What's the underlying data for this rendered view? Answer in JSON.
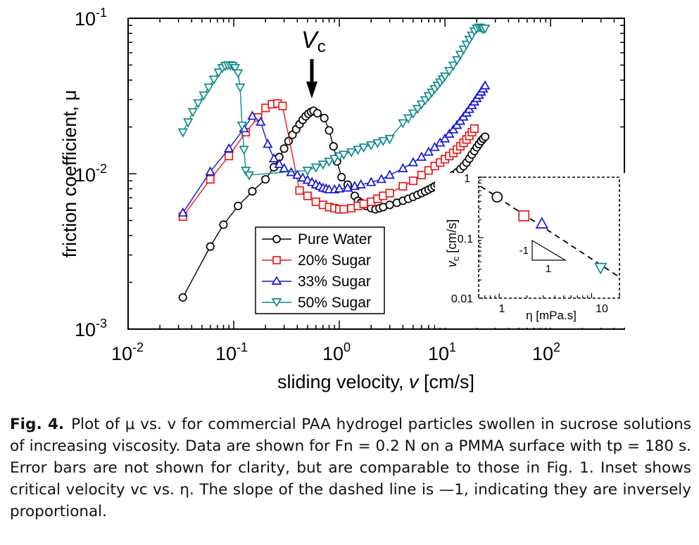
{
  "chart_data": [
    {
      "type": "line",
      "scale": {
        "x": "log",
        "y": "log"
      },
      "xlabel_parts": {
        "text": "sliding velocity, ",
        "var": "v",
        "unit": "  [cm/s]"
      },
      "ylabel": "friction coefficient, μ",
      "xlim": [
        0.01,
        500
      ],
      "ylim": [
        0.001,
        0.1
      ],
      "x_ticks": [
        {
          "base": "10",
          "exp": "-2",
          "value": 0.01
        },
        {
          "base": "10",
          "exp": "-1",
          "value": 0.1
        },
        {
          "base": "10",
          "exp": "0",
          "value": 1
        },
        {
          "base": "10",
          "exp": "1",
          "value": 10
        },
        {
          "base": "10",
          "exp": "2",
          "value": 100
        }
      ],
      "y_ticks": [
        {
          "base": "10",
          "exp": "-3",
          "value": 0.001
        },
        {
          "base": "10",
          "exp": "-2",
          "value": 0.01
        },
        {
          "base": "10",
          "exp": "-1",
          "value": 0.1
        }
      ],
      "annotation": {
        "text": "V",
        "sub": "c",
        "x": 0.55
      },
      "legend_position": "lower-center",
      "series": [
        {
          "name": "Pure Water",
          "color": "#000000",
          "marker": "circle",
          "points": [
            [
              0.033,
              0.0016
            ],
            [
              0.06,
              0.0034
            ],
            [
              0.08,
              0.0047
            ],
            [
              0.11,
              0.0062
            ],
            [
              0.15,
              0.0077
            ],
            [
              0.2,
              0.0092
            ],
            [
              0.24,
              0.011
            ],
            [
              0.27,
              0.0128
            ],
            [
              0.3,
              0.0145
            ],
            [
              0.33,
              0.0162
            ],
            [
              0.36,
              0.0178
            ],
            [
              0.39,
              0.0193
            ],
            [
              0.42,
              0.0208
            ],
            [
              0.45,
              0.0222
            ],
            [
              0.48,
              0.0234
            ],
            [
              0.51,
              0.0243
            ],
            [
              0.54,
              0.025
            ],
            [
              0.57,
              0.0254
            ],
            [
              0.62,
              0.0245
            ],
            [
              0.72,
              0.0228
            ],
            [
              0.8,
              0.019
            ],
            [
              0.88,
              0.015
            ],
            [
              0.95,
              0.012
            ],
            [
              1.05,
              0.0095
            ],
            [
              1.2,
              0.0085
            ],
            [
              1.4,
              0.0072
            ],
            [
              1.5,
              0.0067
            ],
            [
              1.6,
              0.0065
            ],
            [
              1.8,
              0.0062
            ],
            [
              2.0,
              0.006
            ],
            [
              2.2,
              0.0059
            ],
            [
              2.4,
              0.006
            ],
            [
              2.6,
              0.0061
            ],
            [
              3.0,
              0.0063
            ],
            [
              3.5,
              0.0065
            ],
            [
              4.0,
              0.0067
            ],
            [
              4.5,
              0.0069
            ],
            [
              5.0,
              0.0071
            ],
            [
              5.5,
              0.0073
            ],
            [
              6.0,
              0.0075
            ],
            [
              6.5,
              0.0077
            ],
            [
              7.0,
              0.0079
            ],
            [
              7.5,
              0.0081
            ],
            [
              8.0,
              0.0083
            ],
            [
              8.5,
              0.0085
            ],
            [
              9.0,
              0.0087
            ],
            [
              9.5,
              0.0089
            ],
            [
              10,
              0.0091
            ],
            [
              11,
              0.0094
            ],
            [
              12,
              0.0098
            ],
            [
              13,
              0.0102
            ],
            [
              14,
              0.0107
            ],
            [
              15,
              0.0112
            ],
            [
              16,
              0.0118
            ],
            [
              17,
              0.0125
            ],
            [
              18,
              0.0133
            ],
            [
              19,
              0.014
            ],
            [
              20,
              0.0148
            ],
            [
              21,
              0.0155
            ],
            [
              22,
              0.0162
            ],
            [
              23,
              0.0168
            ],
            [
              24,
              0.0173
            ]
          ]
        },
        {
          "name": "20% Sugar",
          "color": "#e8191b",
          "marker": "square",
          "points": [
            [
              0.033,
              0.0053
            ],
            [
              0.06,
              0.0092
            ],
            [
              0.09,
              0.013
            ],
            [
              0.13,
              0.0185
            ],
            [
              0.17,
              0.023
            ],
            [
              0.2,
              0.0265
            ],
            [
              0.23,
              0.028
            ],
            [
              0.26,
              0.0283
            ],
            [
              0.29,
              0.0273
            ],
            [
              0.42,
              0.0078
            ],
            [
              0.5,
              0.0072
            ],
            [
              0.6,
              0.0066
            ],
            [
              0.7,
              0.0063
            ],
            [
              0.8,
              0.0061
            ],
            [
              0.9,
              0.006
            ],
            [
              1.0,
              0.0059
            ],
            [
              1.1,
              0.0059
            ],
            [
              1.3,
              0.006
            ],
            [
              1.5,
              0.0062
            ],
            [
              1.7,
              0.0064
            ],
            [
              2.0,
              0.0066
            ],
            [
              2.3,
              0.0069
            ],
            [
              2.6,
              0.0072
            ],
            [
              3.0,
              0.0075
            ],
            [
              4.0,
              0.0083
            ],
            [
              5.0,
              0.009
            ],
            [
              6.0,
              0.0098
            ],
            [
              7.0,
              0.0105
            ],
            [
              8.0,
              0.0112
            ],
            [
              9.0,
              0.0118
            ],
            [
              10,
              0.0124
            ],
            [
              11,
              0.013
            ],
            [
              12,
              0.0136
            ],
            [
              13,
              0.0143
            ],
            [
              14,
              0.015
            ],
            [
              15,
              0.0158
            ],
            [
              16,
              0.0166
            ],
            [
              17,
              0.0175
            ],
            [
              18,
              0.0185
            ],
            [
              19,
              0.0195
            ]
          ]
        },
        {
          "name": "33% Sugar",
          "color": "#1515d4",
          "marker": "triangle-up",
          "points": [
            [
              0.033,
              0.0056
            ],
            [
              0.06,
              0.0103
            ],
            [
              0.09,
              0.0145
            ],
            [
              0.125,
              0.0195
            ],
            [
              0.15,
              0.0235
            ],
            [
              0.18,
              0.0215
            ],
            [
              0.21,
              0.0155
            ],
            [
              0.24,
              0.0125
            ],
            [
              0.27,
              0.0115
            ],
            [
              0.3,
              0.0108
            ],
            [
              0.35,
              0.0102
            ],
            [
              0.4,
              0.0098
            ],
            [
              0.45,
              0.0094
            ],
            [
              0.5,
              0.0091
            ],
            [
              0.55,
              0.0088
            ],
            [
              0.6,
              0.0085
            ],
            [
              0.65,
              0.0083
            ],
            [
              0.7,
              0.0081
            ],
            [
              0.75,
              0.008
            ],
            [
              0.8,
              0.0079
            ],
            [
              0.9,
              0.0079
            ],
            [
              1.0,
              0.008
            ],
            [
              1.2,
              0.0081
            ],
            [
              1.4,
              0.0083
            ],
            [
              1.6,
              0.0085
            ],
            [
              2.0,
              0.0088
            ],
            [
              2.5,
              0.0092
            ],
            [
              3.0,
              0.0098
            ],
            [
              4.0,
              0.0108
            ],
            [
              5.0,
              0.0118
            ],
            [
              6.0,
              0.0128
            ],
            [
              7.0,
              0.0138
            ],
            [
              8.0,
              0.0148
            ],
            [
              9.0,
              0.0158
            ],
            [
              10,
              0.0168
            ],
            [
              11,
              0.018
            ],
            [
              12,
              0.0192
            ],
            [
              13,
              0.0205
            ],
            [
              14,
              0.0218
            ],
            [
              15,
              0.0232
            ],
            [
              16,
              0.0246
            ],
            [
              17,
              0.026
            ],
            [
              18,
              0.0275
            ],
            [
              19,
              0.029
            ],
            [
              20,
              0.0305
            ],
            [
              21,
              0.032
            ],
            [
              22,
              0.0336
            ],
            [
              23,
              0.0352
            ],
            [
              24,
              0.0368
            ]
          ]
        },
        {
          "name": "50% Sugar",
          "color": "#0e8a8a",
          "marker": "triangle-down",
          "points": [
            [
              0.033,
              0.0185
            ],
            [
              0.037,
              0.0215
            ],
            [
              0.041,
              0.025
            ],
            [
              0.046,
              0.0285
            ],
            [
              0.052,
              0.032
            ],
            [
              0.058,
              0.036
            ],
            [
              0.065,
              0.0405
            ],
            [
              0.072,
              0.045
            ],
            [
              0.078,
              0.048
            ],
            [
              0.083,
              0.0495
            ],
            [
              0.088,
              0.05
            ],
            [
              0.093,
              0.05
            ],
            [
              0.098,
              0.0495
            ],
            [
              0.103,
              0.048
            ],
            [
              0.11,
              0.0445
            ],
            [
              0.115,
              0.036
            ],
            [
              0.12,
              0.0205
            ],
            [
              0.125,
              0.0143
            ],
            [
              0.13,
              0.0105
            ],
            [
              0.14,
              0.0098
            ],
            [
              0.5,
              0.0105
            ],
            [
              0.6,
              0.011
            ],
            [
              0.7,
              0.0115
            ],
            [
              0.8,
              0.012
            ],
            [
              0.9,
              0.0125
            ],
            [
              1.0,
              0.013
            ],
            [
              1.1,
              0.0133
            ],
            [
              1.3,
              0.0138
            ],
            [
              1.5,
              0.0143
            ],
            [
              1.7,
              0.0148
            ],
            [
              2.0,
              0.0153
            ],
            [
              2.3,
              0.0158
            ],
            [
              2.6,
              0.0163
            ],
            [
              3.0,
              0.0168
            ],
            [
              4.0,
              0.0212
            ],
            [
              4.5,
              0.0228
            ],
            [
              5.0,
              0.0245
            ],
            [
              5.5,
              0.0262
            ],
            [
              6.0,
              0.028
            ],
            [
              6.5,
              0.0298
            ],
            [
              7.0,
              0.0316
            ],
            [
              7.5,
              0.0334
            ],
            [
              8.0,
              0.0352
            ],
            [
              8.5,
              0.037
            ],
            [
              9.0,
              0.0388
            ],
            [
              9.5,
              0.0406
            ],
            [
              10,
              0.0424
            ],
            [
              11,
              0.046
            ],
            [
              12,
              0.0498
            ],
            [
              13,
              0.054
            ],
            [
              14,
              0.0585
            ],
            [
              15,
              0.0632
            ],
            [
              16,
              0.068
            ],
            [
              17,
              0.073
            ],
            [
              18,
              0.0778
            ],
            [
              19,
              0.0828
            ],
            [
              20,
              0.0862
            ],
            [
              21,
              0.0875
            ],
            [
              22,
              0.0868
            ],
            [
              23,
              0.0855
            ],
            [
              24,
              0.0862
            ]
          ]
        }
      ]
    },
    {
      "type": "scatter",
      "scale": {
        "x": "log",
        "y": "log"
      },
      "xlabel": "η [mPa.s]",
      "ylabel_parts": {
        "var": "v",
        "sub": "c",
        "unit": " [cm/s]"
      },
      "xlim": [
        0.6,
        20
      ],
      "ylim": [
        0.01,
        1
      ],
      "x_ticks": [
        {
          "label": "1",
          "value": 1
        },
        {
          "label": "10",
          "value": 10
        }
      ],
      "y_ticks": [
        {
          "label": "0.01",
          "value": 0.01
        },
        {
          "label": "0.1",
          "value": 0.1
        },
        {
          "label": "1",
          "value": 1
        }
      ],
      "slope_triangle": {
        "vertical_label": "-1",
        "horizontal_label": "1"
      },
      "dashed_fit_slope": -1,
      "points": [
        {
          "x": 0.95,
          "y": 0.47,
          "marker": "circle",
          "color": "#000000"
        },
        {
          "x": 1.85,
          "y": 0.23,
          "marker": "square",
          "color": "#e8191b"
        },
        {
          "x": 2.9,
          "y": 0.17,
          "marker": "triangle-up",
          "color": "#1515d4"
        },
        {
          "x": 12.5,
          "y": 0.032,
          "marker": "triangle-down",
          "color": "#0e8a8a"
        }
      ]
    }
  ],
  "caption": {
    "label": "Fig. 4.",
    "text": "Plot of μ vs. v for commercial PAA hydrogel particles swollen in sucrose solutions of increasing viscosity. Data are shown for Fn = 0.2 N on a PMMA surface with tp = 180 s. Error bars are not shown for clarity, but are comparable to those in Fig. 1. Inset shows critical velocity vc vs. η. The slope of the dashed line is —1, indicating they are inversely proportional."
  }
}
